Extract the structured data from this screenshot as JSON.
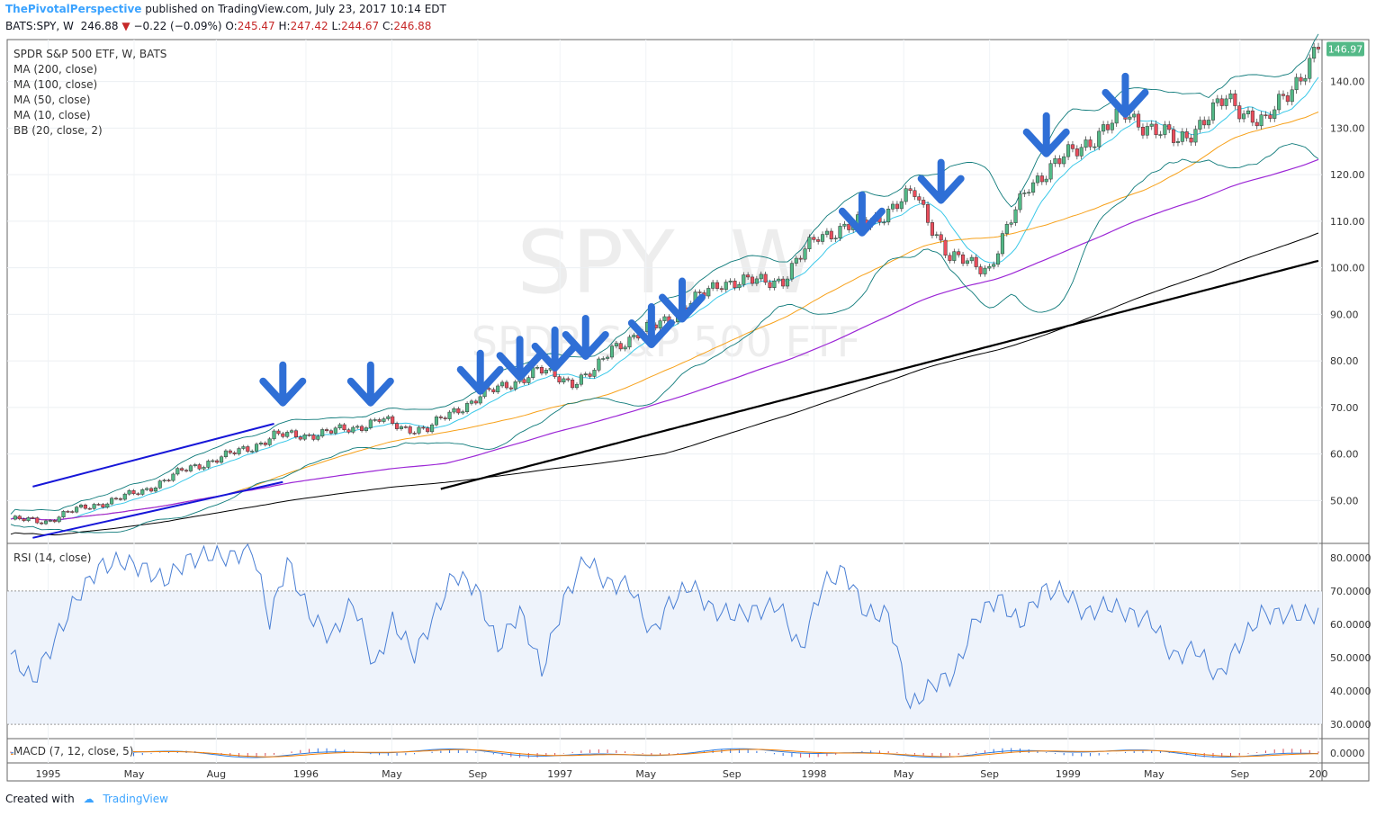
{
  "header": {
    "author": "ThePivotalPerspective",
    "published": "published on TradingView.com, July 23, 2017 10:14 EDT",
    "symbol_line": "BATS:SPY, W",
    "last": "246.88",
    "change": "−0.22 (−0.09%)",
    "o_label": "O:",
    "o_val": "245.47",
    "h_label": "H:",
    "h_val": "247.42",
    "l_label": "L:",
    "l_val": "244.67",
    "c_label": "C:",
    "c_val": "246.88"
  },
  "legend": {
    "title": "SPDR S&P 500 ETF, W, BATS",
    "ma200": "MA (200, close)",
    "ma100": "MA (100, close)",
    "ma50": "MA (50, close)",
    "ma10": "MA (10, close)",
    "bb": "BB (20, close, 2)"
  },
  "watermark": {
    "line1": "SPY, W",
    "line2": "SPDR S&P 500 ETF"
  },
  "rsi_label": "RSI (14, close)",
  "macd_label": "MACD (7, 12, close, 5)",
  "last_price_badge": "146.97",
  "footer": {
    "created": "Created with",
    "brand": "TradingView"
  },
  "colors": {
    "up": "#53b987",
    "down": "#eb4d5c",
    "ma10": "#39c8e8",
    "ma50": "#f7a11a",
    "ma100": "#9c27d6",
    "ma200": "#000000",
    "bb": "#0e7a7a",
    "arrow": "#2f6fd6",
    "trendline": "#1616d8",
    "rsi": "#4a7fd4",
    "macd": "#2e7de0",
    "signal": "#f57c00"
  },
  "chart_data": [
    {
      "type": "candlestick",
      "title": "SPDR S&P 500 ETF, W, BATS",
      "x_ticks": [
        "1995",
        "May",
        "Aug",
        "1996",
        "May",
        "Sep",
        "1997",
        "May",
        "Sep",
        "1998",
        "May",
        "Sep",
        "1999",
        "May",
        "Sep",
        "200"
      ],
      "y_ticks": [
        "50.00",
        "60.00",
        "70.00",
        "80.00",
        "90.00",
        "100.00",
        "110.00",
        "120.00",
        "130.00",
        "140.00"
      ],
      "ylim": [
        41,
        149
      ],
      "x_index_range": [
        0,
        262
      ],
      "overlays": [
        "MA (200, close)",
        "MA (100, close)",
        "MA (50, close)",
        "MA (10, close)",
        "BB (20, close, 2)"
      ],
      "annotations": {
        "down_arrows_count": 13,
        "trendlines": [
          {
            "from": [
              5,
              53
            ],
            "to": [
              60,
              66.5
            ]
          },
          {
            "from": [
              5,
              42
            ],
            "to": [
              62,
              54
            ]
          }
        ]
      },
      "close_approx": [
        [
          0,
          46
        ],
        [
          8,
          45.5
        ],
        [
          13,
          47.5
        ],
        [
          21,
          49.5
        ],
        [
          30,
          52
        ],
        [
          39,
          56.3
        ],
        [
          47,
          59
        ],
        [
          55,
          61.5
        ],
        [
          60,
          64
        ],
        [
          67,
          64
        ],
        [
          78,
          65.5
        ],
        [
          84,
          67.5
        ],
        [
          89,
          65.5
        ],
        [
          95,
          65.5
        ],
        [
          100,
          68.5
        ],
        [
          107,
          72.5
        ],
        [
          115,
          75.5
        ],
        [
          120,
          78
        ],
        [
          128,
          75.5
        ],
        [
          133,
          77.5
        ],
        [
          137,
          83
        ],
        [
          144,
          86
        ],
        [
          152,
          90.5
        ],
        [
          162,
          97
        ],
        [
          170,
          97
        ],
        [
          176,
          97.5
        ],
        [
          184,
          107
        ],
        [
          196,
          110
        ],
        [
          206,
          116
        ],
        [
          214,
          102
        ],
        [
          223,
          100
        ],
        [
          232,
          118
        ],
        [
          243,
          125.5
        ],
        [
          254,
          133
        ],
        [
          266,
          127
        ],
        [
          277,
          136
        ],
        [
          286,
          131
        ],
        [
          298,
          146.97
        ]
      ]
    },
    {
      "type": "line",
      "title": "RSI (14, close)",
      "y_ticks": [
        "30.0000",
        "40.0000",
        "50.0000",
        "60.0000",
        "70.0000",
        "80.0000"
      ],
      "ylim": [
        26,
        84
      ],
      "bands": [
        30,
        70
      ],
      "values_approx": [
        [
          0,
          51
        ],
        [
          5,
          43
        ],
        [
          10,
          55
        ],
        [
          15,
          68
        ],
        [
          20,
          77
        ],
        [
          25,
          79
        ],
        [
          30,
          77
        ],
        [
          35,
          73
        ],
        [
          40,
          79
        ],
        [
          45,
          81
        ],
        [
          50,
          80
        ],
        [
          55,
          83
        ],
        [
          59,
          61
        ],
        [
          63,
          79
        ],
        [
          68,
          63
        ],
        [
          73,
          56
        ],
        [
          78,
          67
        ],
        [
          83,
          47
        ],
        [
          87,
          61
        ],
        [
          92,
          51
        ],
        [
          96,
          61
        ],
        [
          101,
          75
        ],
        [
          106,
          71
        ],
        [
          111,
          53
        ],
        [
          116,
          64
        ],
        [
          121,
          46
        ],
        [
          126,
          67
        ],
        [
          131,
          80
        ],
        [
          136,
          72
        ],
        [
          141,
          72
        ],
        [
          146,
          57
        ],
        [
          150,
          66
        ],
        [
          155,
          72
        ],
        [
          160,
          64
        ],
        [
          165,
          63
        ],
        [
          170,
          64
        ],
        [
          175,
          66
        ],
        [
          180,
          52
        ],
        [
          185,
          72
        ],
        [
          190,
          76
        ],
        [
          195,
          63
        ],
        [
          200,
          63
        ],
        [
          205,
          35
        ],
        [
          210,
          42
        ],
        [
          215,
          45
        ],
        [
          220,
          62
        ],
        [
          225,
          68
        ],
        [
          230,
          60
        ],
        [
          235,
          70
        ],
        [
          240,
          70
        ],
        [
          245,
          63
        ],
        [
          250,
          66
        ],
        [
          255,
          63
        ],
        [
          260,
          61
        ],
        [
          265,
          50
        ],
        [
          270,
          53
        ],
        [
          275,
          44
        ],
        [
          280,
          54
        ],
        [
          285,
          63
        ],
        [
          291,
          63
        ]
      ]
    },
    {
      "type": "line",
      "title": "MACD (7, 12, close, 5)",
      "y_ticks": [
        "0.0000"
      ],
      "series": [
        {
          "name": "MACD"
        },
        {
          "name": "Signal"
        }
      ]
    }
  ]
}
